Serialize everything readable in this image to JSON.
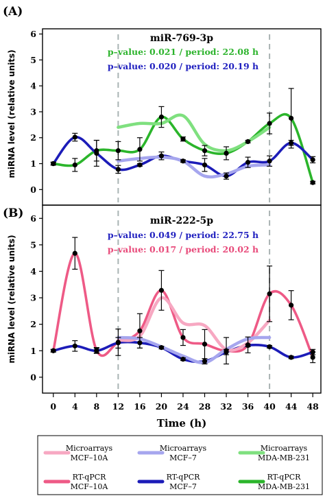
{
  "chart_data": [
    {
      "type": "line",
      "panel_label": "(A)",
      "title": "miR-769-3p",
      "annotations": [
        {
          "text": "p–value: 0.021 / period: 22.08 h",
          "color": "#2cb32c"
        },
        {
          "text": "p–value: 0.020 / period: 20.19 h",
          "color": "#1f1fbf"
        }
      ],
      "ylabel": "miRNA level (relative units)",
      "ylim": [
        -0.6,
        6.2
      ],
      "yticks": [
        0,
        1,
        2,
        3,
        4,
        5,
        6
      ],
      "series": [
        {
          "name": "RT-qPCR MDA-MB-231",
          "color": "#2bb52b",
          "x": [
            0,
            4,
            8,
            12,
            16,
            20,
            24,
            28,
            32,
            36,
            40,
            44,
            48
          ],
          "y": [
            1.0,
            0.95,
            1.5,
            1.5,
            1.55,
            2.8,
            1.95,
            1.5,
            1.4,
            1.85,
            2.55,
            2.75,
            0.27
          ],
          "err": [
            0.06,
            0.25,
            0.4,
            0.35,
            0.45,
            0.4,
            0.08,
            0.2,
            0.25,
            0.05,
            0.4,
            1.15,
            0.05
          ]
        },
        {
          "name": "RT-qPCR MCF–7",
          "color": "#1c1cb8",
          "x": [
            0,
            4,
            8,
            12,
            16,
            20,
            24,
            28,
            32,
            36,
            40,
            44,
            48
          ],
          "y": [
            1.0,
            2.02,
            1.4,
            0.78,
            0.95,
            1.3,
            1.1,
            0.95,
            0.52,
            1.05,
            1.1,
            1.8,
            1.15
          ],
          "err": [
            0.05,
            0.15,
            0.5,
            0.15,
            0.05,
            0.15,
            0.05,
            0.25,
            0.12,
            0.2,
            0.2,
            0.1,
            0.12
          ]
        },
        {
          "name": "Microarrays MDA-MB-231",
          "color": "#7fe07f",
          "x": [
            12,
            16,
            20,
            24,
            28,
            32,
            36,
            40
          ],
          "y": [
            2.4,
            2.55,
            2.55,
            2.85,
            1.75,
            1.5,
            1.85,
            2.4
          ]
        },
        {
          "name": "Microarrays MCF–7",
          "color": "#a6a6ee",
          "x": [
            12,
            16,
            20,
            24,
            28,
            32,
            36,
            40
          ],
          "y": [
            1.1,
            1.2,
            1.25,
            1.1,
            0.52,
            0.6,
            0.9,
            0.95
          ]
        }
      ]
    },
    {
      "type": "line",
      "panel_label": "(B)",
      "title": "miR-222-5p",
      "annotations": [
        {
          "text": "p–value: 0.049 / period: 22.75 h",
          "color": "#1f1fbf"
        },
        {
          "text": "p–value: 0.017 / period: 20.02 h",
          "color": "#e84a7a"
        }
      ],
      "ylabel": "miRNA level (relative units)",
      "ylim": [
        -0.6,
        6.5
      ],
      "yticks": [
        0,
        1,
        2,
        3,
        4,
        5,
        6
      ],
      "xlabel": "Time (h)",
      "xticks": [
        0,
        4,
        8,
        12,
        16,
        20,
        24,
        28,
        32,
        36,
        40,
        44,
        48
      ],
      "xlim": [
        -2,
        49.5
      ],
      "vlines": [
        12,
        40
      ],
      "series": [
        {
          "name": "RT-qPCR MCF–10A",
          "color": "#ee5a86",
          "x": [
            0,
            4,
            8,
            12,
            16,
            20,
            24,
            28,
            32,
            36,
            40,
            44,
            48
          ],
          "y": [
            1.0,
            4.68,
            1.02,
            1.32,
            1.75,
            3.28,
            1.5,
            1.25,
            1.0,
            1.22,
            3.15,
            2.72,
            0.75
          ],
          "err": [
            0.05,
            0.6,
            0.1,
            0.5,
            0.65,
            0.75,
            0.3,
            0.55,
            0.5,
            0.3,
            1.05,
            0.55,
            0.2
          ]
        },
        {
          "name": "RT-qPCR MCF–7",
          "color": "#1c1cb8",
          "x": [
            0,
            4,
            8,
            12,
            16,
            20,
            24,
            28,
            32,
            36,
            40,
            44,
            48
          ],
          "y": [
            1.0,
            1.18,
            1.0,
            1.3,
            1.3,
            1.12,
            0.68,
            0.6,
            0.95,
            1.2,
            1.15,
            0.75,
            0.95
          ],
          "err": [
            0.05,
            0.2,
            0.1,
            0.2,
            0.2,
            0.05,
            0.05,
            0.1,
            0.1,
            0.05,
            0.05,
            0.05,
            0.1
          ]
        },
        {
          "name": "Microarrays MCF–10A",
          "color": "#f7a8c2",
          "x": [
            12,
            16,
            20,
            24,
            28,
            32,
            36,
            40
          ],
          "y": [
            1.4,
            1.55,
            3.0,
            2.05,
            1.95,
            1.05,
            1.3,
            2.15
          ]
        },
        {
          "name": "Microarrays MCF–7",
          "color": "#a6a6ee",
          "x": [
            12,
            16,
            20,
            24,
            28,
            32,
            36,
            40
          ],
          "y": [
            1.5,
            1.45,
            1.15,
            0.8,
            0.55,
            1.05,
            1.45,
            1.5
          ]
        }
      ]
    }
  ],
  "legend": [
    {
      "line1": "Microarrays",
      "line2": "MCF–10A",
      "color": "#f7a8c2"
    },
    {
      "line1": "Microarrays",
      "line2": "MCF–7",
      "color": "#a6a6ee"
    },
    {
      "line1": "Microarrays",
      "line2": "MDA-MB-231",
      "color": "#7fe07f"
    },
    {
      "line1": "RT-qPCR",
      "line2": "MCF–10A",
      "color": "#ee5a86"
    },
    {
      "line1": "RT-qPCR",
      "line2": "MCF–7",
      "color": "#1c1cb8"
    },
    {
      "line1": "RT-qPCR",
      "line2": "MDA-MB-231",
      "color": "#2bb52b"
    }
  ]
}
